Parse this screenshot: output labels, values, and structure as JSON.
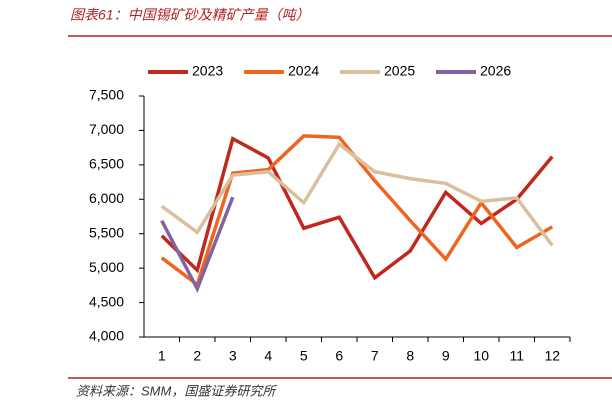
{
  "chart_data": {
    "type": "line",
    "title": "图表61：中国锡矿砂及精矿产量（吨）",
    "source": "资料来源：SMM，国盛证券研究所",
    "categories": [
      "1",
      "2",
      "3",
      "4",
      "5",
      "6",
      "7",
      "8",
      "9",
      "10",
      "11",
      "12"
    ],
    "series": [
      {
        "name": "2023",
        "color": "#c0281d",
        "values": [
          5470,
          4970,
          6880,
          6600,
          5580,
          5740,
          4860,
          5250,
          6100,
          5650,
          6000,
          6620
        ]
      },
      {
        "name": "2024",
        "color": "#f0641e",
        "values": [
          5150,
          4760,
          6380,
          6430,
          6920,
          6900,
          6270,
          5690,
          5130,
          5950,
          5300,
          5600
        ]
      },
      {
        "name": "2025",
        "color": "#d9bf9c",
        "values": [
          5900,
          5520,
          6350,
          6400,
          5950,
          6800,
          6400,
          6300,
          6230,
          5970,
          6020,
          5330
        ]
      },
      {
        "name": "2026",
        "color": "#8064a2",
        "values": [
          5690,
          4700,
          6030,
          null,
          null,
          null,
          null,
          null,
          null,
          null,
          null,
          null
        ]
      }
    ],
    "ylim": [
      4000,
      7500
    ],
    "yticks": [
      {
        "value": 4000,
        "label": "4,000"
      },
      {
        "value": 4500,
        "label": "4,500"
      },
      {
        "value": 5000,
        "label": "5,000"
      },
      {
        "value": 5500,
        "label": "5,500"
      },
      {
        "value": 6000,
        "label": "6,000"
      },
      {
        "value": 6500,
        "label": "6,500"
      },
      {
        "value": 7000,
        "label": "7,000"
      },
      {
        "value": 7500,
        "label": "7,500"
      }
    ],
    "grid": false
  }
}
